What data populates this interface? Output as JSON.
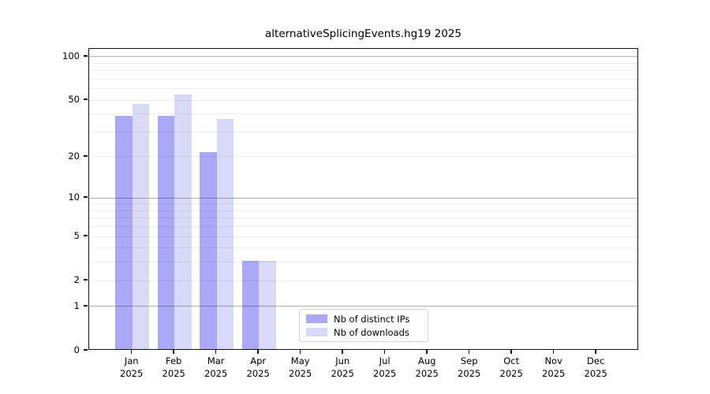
{
  "chart_data": {
    "type": "bar",
    "title": "alternativeSplicingEvents.hg19 2025",
    "categories": [
      "Jan",
      "Feb",
      "Mar",
      "Apr",
      "May",
      "Jun",
      "Jul",
      "Aug",
      "Sep",
      "Oct",
      "Nov",
      "Dec"
    ],
    "x_tick_year": "2025",
    "series": [
      {
        "name": "Nb of distinct IPs",
        "color": "#a9a9f7",
        "values": [
          38,
          38,
          21,
          3,
          0,
          0,
          0,
          0,
          0,
          0,
          0,
          0
        ]
      },
      {
        "name": "Nb of downloads",
        "color": "#d9d9f8",
        "values": [
          46,
          53,
          36,
          3,
          0,
          0,
          0,
          0,
          0,
          0,
          0,
          0
        ]
      }
    ],
    "y_axis": {
      "scale": "log1p",
      "ticks": [
        0,
        1,
        2,
        5,
        10,
        20,
        50,
        100
      ],
      "minor_gridlines": [
        3,
        4,
        6,
        7,
        8,
        9,
        30,
        40,
        60,
        70,
        80,
        90
      ],
      "decade_gridlines": [
        1,
        10,
        100
      ],
      "max": 113
    },
    "grid": "horizontal",
    "legend": {
      "position": "lower-center"
    }
  },
  "colors": {
    "bar_distinct_ips": "#a9a9f7",
    "bar_downloads": "#d9d9f8",
    "decade_gridline": "#b3b3b3",
    "minor_gridline": "#ededed",
    "axis": "#111111"
  }
}
